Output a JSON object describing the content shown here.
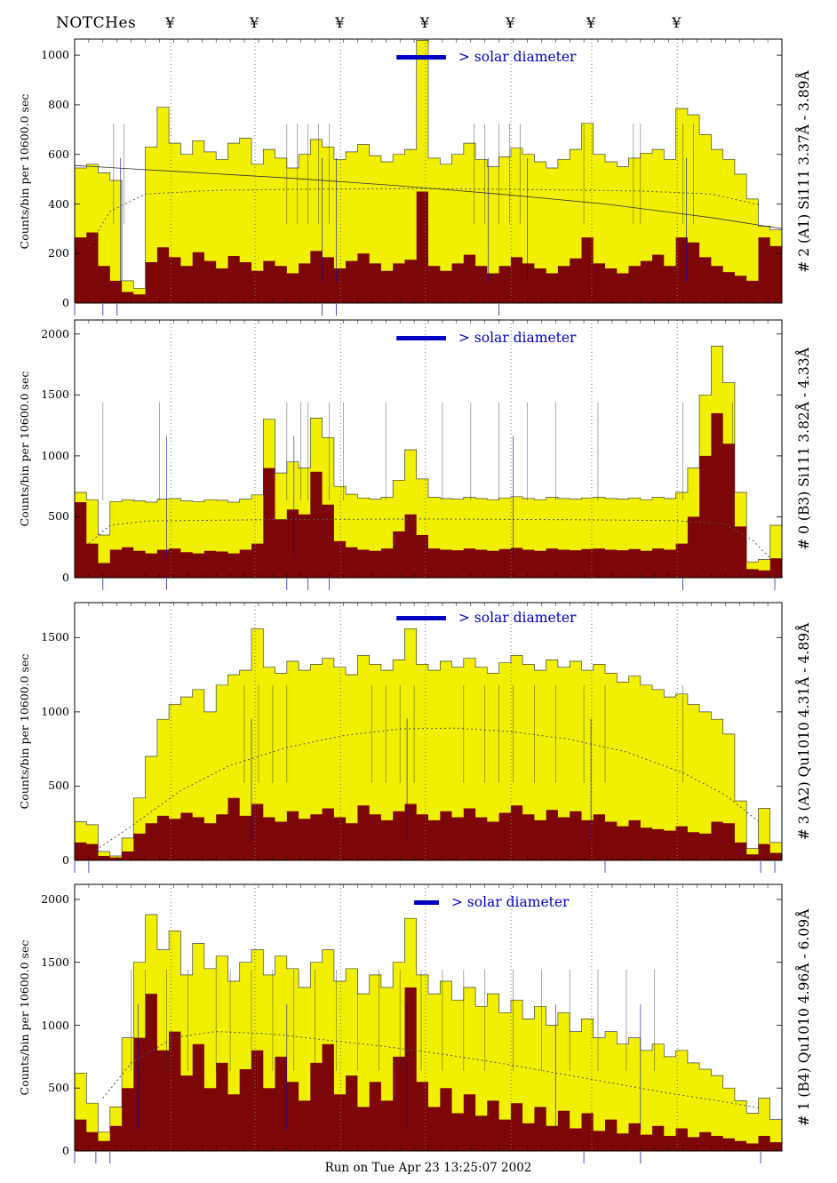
{
  "header": {
    "title": "NOTCHes",
    "notch_symbol": "¥",
    "notch_fractions": [
      0.136,
      0.255,
      0.376,
      0.496,
      0.617,
      0.731,
      0.852
    ]
  },
  "axis_label": "Counts/bin per  10600.0 sec",
  "footer": {
    "run_label": "Run on Tue Apr 23 13:25:07 2002"
  },
  "colors": {
    "yellow": "#f0f000",
    "dark_red": "#7d0606",
    "blue": "#0000c4",
    "dotted": "#777777",
    "outline": "#444444"
  },
  "chart_data": [
    {
      "type": "bar",
      "label": "# 2 (A1) Si111  3.37Å - 3.89Å",
      "solar_label": "> solar diameter",
      "ylim": [
        0,
        1065
      ],
      "yticks": [
        0,
        200,
        400,
        600,
        800,
        1000
      ],
      "solar_bar": [
        0.455,
        0.525
      ],
      "series": [
        {
          "name": "total",
          "color_key": "yellow",
          "values": [
            545,
            560,
            525,
            495,
            90,
            60,
            630,
            790,
            645,
            600,
            655,
            610,
            580,
            645,
            665,
            560,
            620,
            585,
            545,
            600,
            660,
            630,
            580,
            610,
            640,
            595,
            570,
            600,
            620,
            1060,
            585,
            560,
            600,
            645,
            580,
            550,
            590,
            625,
            600,
            570,
            545,
            580,
            620,
            725,
            600,
            570,
            550,
            585,
            605,
            620,
            580,
            785,
            760,
            680,
            620,
            580,
            520,
            420,
            310,
            295
          ]
        },
        {
          "name": "core",
          "color_key": "dark_red",
          "values": [
            265,
            285,
            150,
            90,
            45,
            35,
            165,
            225,
            185,
            150,
            205,
            170,
            140,
            190,
            165,
            130,
            170,
            150,
            120,
            160,
            210,
            185,
            140,
            170,
            200,
            160,
            130,
            160,
            175,
            450,
            150,
            130,
            160,
            195,
            150,
            120,
            150,
            185,
            160,
            140,
            120,
            150,
            180,
            265,
            160,
            140,
            120,
            150,
            170,
            195,
            150,
            265,
            245,
            185,
            150,
            125,
            110,
            90,
            265,
            230
          ]
        }
      ],
      "dotted_curve": [
        [
          0.02,
          230
        ],
        [
          0.05,
          370
        ],
        [
          0.1,
          440
        ],
        [
          0.2,
          455
        ],
        [
          0.35,
          460
        ],
        [
          0.5,
          462
        ],
        [
          0.65,
          458
        ],
        [
          0.8,
          452
        ],
        [
          0.9,
          440
        ],
        [
          0.97,
          395
        ]
      ],
      "solid_curve": [
        [
          0.0,
          555
        ],
        [
          0.15,
          530
        ],
        [
          0.3,
          505
        ],
        [
          0.45,
          475
        ],
        [
          0.6,
          440
        ],
        [
          0.75,
          400
        ],
        [
          0.9,
          345
        ],
        [
          1.0,
          300
        ]
      ],
      "annotations": [
        0.055,
        0.07,
        0.3,
        0.315,
        0.33,
        0.345,
        0.36,
        0.565,
        0.58,
        0.6,
        0.615,
        0.63,
        0.72,
        0.79,
        0.8,
        0.86,
        0.875
      ],
      "annotations_blue": [
        0.065,
        0.35,
        0.37,
        0.585,
        0.64,
        0.865
      ],
      "below_ticks": [
        0.0,
        0.04,
        0.06,
        0.35,
        0.37,
        0.6
      ]
    },
    {
      "type": "bar",
      "label": "# 0 (B3) Si111  3.82Å - 4.33Å",
      "solar_label": "> solar diameter",
      "ylim": [
        0,
        2115
      ],
      "yticks": [
        0,
        500,
        1000,
        1500,
        2000
      ],
      "solar_bar": [
        0.455,
        0.525
      ],
      "series": [
        {
          "name": "total",
          "color_key": "yellow",
          "values": [
            700,
            640,
            350,
            625,
            640,
            630,
            620,
            645,
            650,
            630,
            625,
            640,
            635,
            620,
            645,
            680,
            1300,
            860,
            950,
            900,
            1310,
            1150,
            750,
            685,
            655,
            645,
            660,
            800,
            1050,
            810,
            660,
            650,
            645,
            660,
            650,
            640,
            655,
            665,
            650,
            640,
            660,
            650,
            645,
            655,
            660,
            650,
            645,
            655,
            640,
            660,
            650,
            700,
            900,
            1500,
            1900,
            1600,
            700,
            130,
            150,
            430
          ]
        },
        {
          "name": "core",
          "color_key": "dark_red",
          "values": [
            620,
            280,
            120,
            230,
            250,
            220,
            200,
            230,
            240,
            210,
            200,
            220,
            215,
            200,
            230,
            280,
            900,
            480,
            560,
            520,
            870,
            600,
            300,
            250,
            230,
            220,
            240,
            380,
            520,
            350,
            240,
            230,
            225,
            240,
            230,
            220,
            235,
            245,
            230,
            220,
            240,
            230,
            225,
            235,
            240,
            230,
            225,
            235,
            220,
            240,
            230,
            280,
            500,
            1000,
            1350,
            1100,
            420,
            70,
            60,
            160
          ]
        }
      ],
      "dotted_curve": [
        [
          0.02,
          280
        ],
        [
          0.05,
          430
        ],
        [
          0.1,
          465
        ],
        [
          0.3,
          478
        ],
        [
          0.5,
          482
        ],
        [
          0.7,
          476
        ],
        [
          0.85,
          468
        ],
        [
          0.92,
          440
        ],
        [
          0.96,
          300
        ],
        [
          0.985,
          150
        ]
      ],
      "annotations": [
        0.04,
        0.12,
        0.3,
        0.32,
        0.33,
        0.36,
        0.38,
        0.44,
        0.52,
        0.56,
        0.6,
        0.64,
        0.68,
        0.74,
        0.86,
        0.93
      ],
      "annotations_blue": [
        0.13,
        0.31,
        0.62
      ],
      "below_ticks": [
        0.04,
        0.13,
        0.3,
        0.33,
        0.36,
        0.86,
        0.99
      ]
    },
    {
      "type": "bar",
      "label": "# 3 (A2) Qu1010  4.31Å - 4.89Å",
      "solar_label": "> solar diameter",
      "ylim": [
        0,
        1735
      ],
      "yticks": [
        0,
        500,
        1000,
        1500
      ],
      "solar_bar": [
        0.455,
        0.525
      ],
      "series": [
        {
          "name": "total",
          "color_key": "yellow",
          "values": [
            260,
            240,
            60,
            30,
            150,
            420,
            700,
            950,
            1050,
            1100,
            1150,
            1000,
            1180,
            1250,
            1280,
            1560,
            1300,
            1260,
            1340,
            1280,
            1320,
            1360,
            1300,
            1250,
            1380,
            1320,
            1280,
            1350,
            1560,
            1320,
            1280,
            1340,
            1300,
            1360,
            1300,
            1260,
            1330,
            1380,
            1320,
            1280,
            1350,
            1300,
            1340,
            1280,
            1320,
            1260,
            1200,
            1240,
            1180,
            1150,
            1100,
            1120,
            1050,
            1000,
            950,
            850,
            400,
            80,
            350,
            120
          ]
        },
        {
          "name": "core",
          "color_key": "dark_red",
          "values": [
            120,
            110,
            30,
            20,
            60,
            180,
            250,
            300,
            280,
            320,
            290,
            250,
            310,
            420,
            300,
            380,
            290,
            260,
            330,
            280,
            310,
            350,
            290,
            250,
            370,
            310,
            270,
            330,
            380,
            310,
            270,
            330,
            290,
            350,
            290,
            260,
            320,
            370,
            310,
            270,
            340,
            290,
            330,
            270,
            310,
            260,
            230,
            270,
            220,
            210,
            200,
            230,
            190,
            180,
            260,
            250,
            120,
            40,
            110,
            50
          ]
        }
      ],
      "dotted_curve": [
        [
          0.03,
          70
        ],
        [
          0.08,
          230
        ],
        [
          0.15,
          470
        ],
        [
          0.22,
          640
        ],
        [
          0.3,
          760
        ],
        [
          0.38,
          840
        ],
        [
          0.46,
          885
        ],
        [
          0.54,
          890
        ],
        [
          0.62,
          865
        ],
        [
          0.7,
          815
        ],
        [
          0.78,
          730
        ],
        [
          0.86,
          590
        ],
        [
          0.92,
          440
        ],
        [
          0.97,
          250
        ]
      ],
      "annotations": [
        0.24,
        0.26,
        0.28,
        0.3,
        0.42,
        0.44,
        0.46,
        0.48,
        0.55,
        0.58,
        0.6,
        0.62,
        0.65,
        0.68,
        0.72,
        0.75,
        0.86
      ],
      "annotations_blue": [
        0.25,
        0.47,
        0.73
      ],
      "below_ticks": [
        0.0,
        0.02,
        0.75,
        0.97,
        0.99
      ]
    },
    {
      "type": "bar",
      "label": "# 1 (B4) Qu1010  4.96Å - 6.09Å",
      "solar_label": "> solar diameter",
      "ylim": [
        0,
        2120
      ],
      "yticks": [
        0,
        500,
        1000,
        1500,
        2000
      ],
      "solar_bar": [
        0.48,
        0.515
      ],
      "series": [
        {
          "name": "total",
          "color_key": "yellow",
          "values": [
            620,
            380,
            150,
            350,
            900,
            1500,
            1880,
            1600,
            1750,
            1400,
            1650,
            1450,
            1550,
            1350,
            1500,
            1600,
            1400,
            1550,
            1450,
            1300,
            1500,
            1600,
            1350,
            1450,
            1250,
            1400,
            1300,
            1500,
            1850,
            1400,
            1250,
            1350,
            1200,
            1300,
            1150,
            1250,
            1100,
            1200,
            1050,
            1150,
            1000,
            1100,
            950,
            1050,
            900,
            950,
            850,
            900,
            800,
            850,
            750,
            800,
            700,
            650,
            600,
            500,
            400,
            300,
            420,
            250
          ]
        },
        {
          "name": "core",
          "color_key": "dark_red",
          "values": [
            250,
            150,
            80,
            200,
            500,
            900,
            1250,
            800,
            950,
            600,
            850,
            500,
            700,
            450,
            650,
            800,
            500,
            750,
            550,
            400,
            700,
            850,
            450,
            600,
            350,
            550,
            400,
            750,
            1300,
            550,
            350,
            500,
            300,
            450,
            280,
            400,
            250,
            380,
            220,
            350,
            200,
            320,
            180,
            300,
            160,
            250,
            140,
            220,
            130,
            200,
            120,
            180,
            110,
            150,
            120,
            100,
            80,
            60,
            120,
            70
          ]
        }
      ],
      "dotted_curve": [
        [
          0.04,
          420
        ],
        [
          0.08,
          700
        ],
        [
          0.14,
          900
        ],
        [
          0.2,
          950
        ],
        [
          0.28,
          930
        ],
        [
          0.36,
          880
        ],
        [
          0.44,
          830
        ],
        [
          0.52,
          770
        ],
        [
          0.6,
          700
        ],
        [
          0.68,
          620
        ],
        [
          0.76,
          540
        ],
        [
          0.84,
          460
        ],
        [
          0.92,
          390
        ],
        [
          0.97,
          340
        ]
      ],
      "annotations": [
        0.08,
        0.1,
        0.13,
        0.16,
        0.2,
        0.22,
        0.25,
        0.28,
        0.31,
        0.34,
        0.37,
        0.4,
        0.43,
        0.46,
        0.49,
        0.52,
        0.55,
        0.58,
        0.62,
        0.66,
        0.7,
        0.74,
        0.78,
        0.82
      ],
      "annotations_blue": [
        0.09,
        0.3,
        0.47,
        0.68,
        0.8
      ],
      "below_ticks": [
        0.0,
        0.03,
        0.05,
        0.72,
        0.8,
        0.97
      ]
    }
  ]
}
